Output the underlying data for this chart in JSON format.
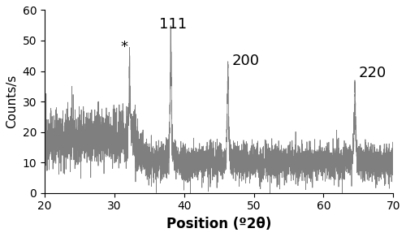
{
  "xlabel": "Position (º2θ)",
  "ylabel": "Counts/s",
  "xlim": [
    20,
    70
  ],
  "ylim": [
    0,
    60
  ],
  "xticks": [
    20,
    30,
    40,
    50,
    60,
    70
  ],
  "yticks": [
    0,
    10,
    20,
    30,
    40,
    50,
    60
  ],
  "line_color": "#7f7f7f",
  "line_width": 0.55,
  "peak_star_x": 32.2,
  "peak_star_y": 44,
  "peak_111_x": 38.1,
  "peak_111_y": 52,
  "peak_200_x": 46.3,
  "peak_200_y": 40,
  "peak_220_x": 64.5,
  "peak_220_y": 36,
  "label_111": "111",
  "label_200": "200",
  "label_220": "220",
  "label_star": "*",
  "seed": 12345,
  "noise_level_low": 4.5,
  "noise_level_high": 3.0,
  "baseline_low": 18,
  "baseline_high": 10,
  "background_color": "#ffffff",
  "font_size_labels": 11,
  "font_size_ticks": 10,
  "font_size_annotations": 13
}
